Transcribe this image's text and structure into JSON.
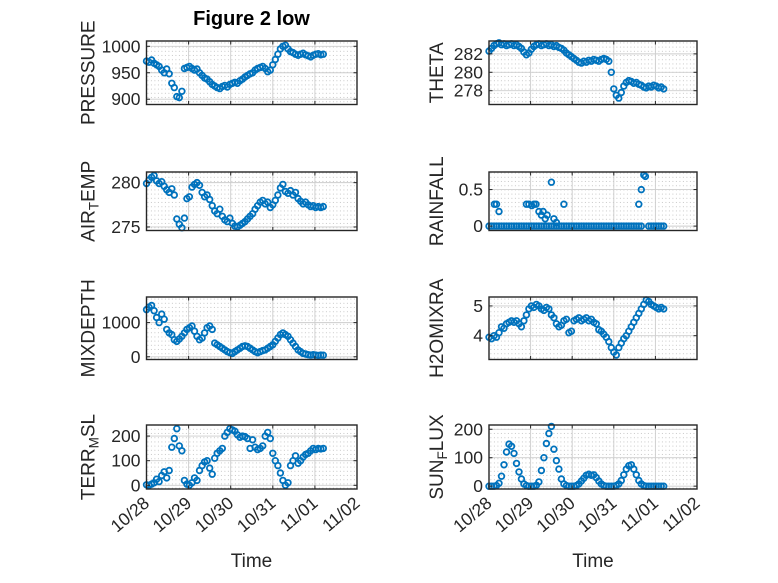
{
  "figure": {
    "title": "Figure 2 low",
    "xlabel": "Time",
    "background": "#ffffff",
    "marker_color": "#0072BD",
    "axis_color": "#262626",
    "grid_color": "#cdcdcd",
    "minor_dot_color": "#c6c6c6",
    "x_tick_labels": [
      "10/28",
      "10/29",
      "10/30",
      "10/31",
      "11/01",
      "11/02"
    ]
  },
  "chart_data": {
    "type": "scatter",
    "marker": "open-circle",
    "x_unit": "days since 10/28 00:00",
    "xlim_days": [
      0,
      5
    ],
    "x_tick_days": [
      0,
      1,
      2,
      3,
      4,
      5
    ],
    "x_tick_labels": [
      "10/28",
      "10/29",
      "10/30",
      "10/31",
      "11/01",
      "11/02"
    ],
    "xlabel": "Time",
    "grid": "major solid + dotted minor",
    "x_days": [
      0,
      0.06,
      0.12,
      0.18,
      0.24,
      0.3,
      0.36,
      0.42,
      0.48,
      0.54,
      0.6,
      0.66,
      0.72,
      0.78,
      0.84,
      0.9,
      0.96,
      1.02,
      1.08,
      1.14,
      1.2,
      1.26,
      1.32,
      1.38,
      1.44,
      1.5,
      1.56,
      1.62,
      1.68,
      1.74,
      1.8,
      1.86,
      1.92,
      1.98,
      2.04,
      2.1,
      2.16,
      2.22,
      2.28,
      2.34,
      2.4,
      2.46,
      2.52,
      2.58,
      2.64,
      2.7,
      2.76,
      2.82,
      2.88,
      2.94,
      3.0,
      3.06,
      3.12,
      3.18,
      3.24,
      3.3,
      3.36,
      3.42,
      3.48,
      3.54,
      3.6,
      3.66,
      3.72,
      3.78,
      3.84,
      3.9,
      3.96,
      4.02,
      4.08,
      4.14,
      4.2
    ],
    "subplots": [
      {
        "id": "pressure",
        "name": "PRESSURE",
        "grid": [
          0,
          0
        ],
        "ylabel_parts": [
          {
            "text": "PRESSURE",
            "sub": false
          }
        ],
        "yticks": [
          900,
          950,
          1000
        ],
        "ylim": [
          890,
          1010
        ],
        "values": [
          972,
          970,
          974,
          968,
          965,
          962,
          955,
          950,
          957,
          948,
          930,
          922,
          905,
          903,
          915,
          958,
          960,
          962,
          958,
          955,
          957,
          950,
          945,
          940,
          938,
          933,
          928,
          925,
          922,
          920,
          924,
          926,
          923,
          928,
          930,
          932,
          930,
          935,
          938,
          942,
          945,
          948,
          950,
          955,
          958,
          960,
          962,
          958,
          952,
          955,
          965,
          975,
          985,
          995,
          1000,
          1002,
          995,
          990,
          988,
          985,
          983,
          985,
          987,
          984,
          982,
          980,
          983,
          985,
          986,
          984,
          985
        ]
      },
      {
        "id": "theta",
        "name": "THETA",
        "grid": [
          0,
          1
        ],
        "ylabel_parts": [
          {
            "text": "THETA",
            "sub": false
          }
        ],
        "yticks": [
          278,
          280,
          282
        ],
        "ylim": [
          276.5,
          283.4
        ],
        "values": [
          282.3,
          282.6,
          282.9,
          283.1,
          283.2,
          283.0,
          283.1,
          282.9,
          283.0,
          283.1,
          282.9,
          283.0,
          282.8,
          282.6,
          282.2,
          281.9,
          282.1,
          282.5,
          282.8,
          283.0,
          283.1,
          282.9,
          283.0,
          283.1,
          282.9,
          283.0,
          282.8,
          282.9,
          282.7,
          282.6,
          282.4,
          282.1,
          281.9,
          281.7,
          281.5,
          281.3,
          281.1,
          281.0,
          281.2,
          281.1,
          281.3,
          281.2,
          281.4,
          281.3,
          281.2,
          281.4,
          281.5,
          281.4,
          281.2,
          280.0,
          278.2,
          277.5,
          277.2,
          277.8,
          278.5,
          278.9,
          279.1,
          279.0,
          278.8,
          278.9,
          278.7,
          278.6,
          278.4,
          278.3,
          278.5,
          278.4,
          278.6,
          278.5,
          278.3,
          278.4,
          278.2
        ]
      },
      {
        "id": "air-temp",
        "name": "AIR_TEMP",
        "grid": [
          1,
          0
        ],
        "ylabel_parts": [
          {
            "text": "AIR",
            "sub": false
          },
          {
            "text": "T",
            "sub": true
          },
          {
            "text": "EMP",
            "sub": false
          }
        ],
        "yticks": [
          275,
          280
        ],
        "ylim": [
          274.6,
          281.2
        ],
        "values": [
          279.9,
          280.3,
          280.6,
          280.8,
          280.2,
          279.9,
          280.1,
          279.6,
          279.2,
          278.9,
          279.3,
          278.6,
          275.9,
          275.3,
          274.9,
          276.0,
          278.2,
          278.4,
          279.5,
          279.8,
          280.0,
          279.7,
          278.9,
          278.4,
          278.6,
          278.1,
          277.4,
          276.8,
          276.5,
          277.0,
          276.2,
          275.8,
          275.6,
          276.0,
          275.4,
          275.1,
          275.0,
          275.2,
          275.4,
          275.6,
          275.9,
          276.2,
          276.5,
          277.0,
          277.4,
          277.8,
          278.0,
          277.6,
          277.8,
          277.2,
          277.5,
          278.0,
          278.6,
          279.4,
          279.8,
          279.0,
          278.8,
          279.1,
          278.6,
          278.9,
          278.2,
          277.9,
          277.6,
          277.8,
          277.5,
          277.3,
          277.4,
          277.2,
          277.3,
          277.2,
          277.3
        ]
      },
      {
        "id": "rainfall",
        "name": "RAINFALL",
        "grid": [
          1,
          1
        ],
        "ylabel_parts": [
          {
            "text": "RAINFALL",
            "sub": false
          }
        ],
        "yticks": [
          0,
          0.5
        ],
        "ylim": [
          -0.06,
          0.74
        ],
        "values": [
          0,
          0,
          0,
          0,
          0,
          0,
          0,
          0,
          0,
          0,
          0,
          0,
          0,
          0,
          0,
          0,
          0,
          0,
          0,
          0,
          0,
          0,
          0,
          0,
          0,
          0,
          0,
          0,
          0,
          0,
          0,
          0,
          0,
          0,
          0,
          0,
          0,
          0,
          0,
          0,
          0,
          0,
          0,
          0,
          0,
          0,
          0,
          0,
          0,
          0,
          0,
          0,
          0,
          0,
          0,
          0,
          0,
          0,
          0,
          0,
          0,
          0,
          null,
          null,
          0,
          0,
          0,
          0,
          0,
          0,
          0
        ],
        "extra_points": [
          [
            0.13,
            0.3
          ],
          [
            0.18,
            0.3
          ],
          [
            0.24,
            0.2
          ],
          [
            0.9,
            0.3
          ],
          [
            0.96,
            0.3
          ],
          [
            1.03,
            0.28
          ],
          [
            1.08,
            0.3
          ],
          [
            1.13,
            0.3
          ],
          [
            1.2,
            0.2
          ],
          [
            1.26,
            0.15
          ],
          [
            1.3,
            0.2
          ],
          [
            1.35,
            0.1
          ],
          [
            1.4,
            0.15
          ],
          [
            1.5,
            0.6
          ],
          [
            1.56,
            0.1
          ],
          [
            1.62,
            0.05
          ],
          [
            1.8,
            0.3
          ],
          [
            3.6,
            0.3
          ],
          [
            3.66,
            0.5
          ],
          [
            3.72,
            0.7
          ],
          [
            3.76,
            0.68
          ]
        ]
      },
      {
        "id": "mixdepth",
        "name": "MIXDEPTH",
        "grid": [
          2,
          0
        ],
        "ylabel_parts": [
          {
            "text": "MIXDEPTH",
            "sub": false
          }
        ],
        "yticks": [
          0,
          1000
        ],
        "ylim": [
          -80,
          1750
        ],
        "values": [
          1380,
          1450,
          1500,
          1350,
          1150,
          1000,
          1250,
          1100,
          800,
          700,
          650,
          500,
          450,
          520,
          600,
          700,
          800,
          850,
          900,
          750,
          600,
          500,
          550,
          700,
          850,
          900,
          800,
          400,
          350,
          300,
          250,
          200,
          150,
          120,
          100,
          150,
          200,
          250,
          300,
          320,
          300,
          250,
          200,
          150,
          120,
          150,
          180,
          200,
          250,
          300,
          350,
          450,
          550,
          650,
          700,
          650,
          600,
          500,
          400,
          300,
          200,
          150,
          100,
          80,
          60,
          50,
          60,
          50,
          40,
          50,
          45
        ]
      },
      {
        "id": "h2omixra",
        "name": "H2OMIXRA",
        "grid": [
          2,
          1
        ],
        "ylabel_parts": [
          {
            "text": "H2OMIXRA",
            "sub": false
          }
        ],
        "yticks": [
          4,
          5
        ],
        "ylim": [
          3.2,
          5.3
        ],
        "values": [
          3.95,
          3.9,
          4.0,
          3.95,
          4.1,
          4.3,
          4.25,
          4.4,
          4.45,
          4.5,
          4.45,
          4.5,
          4.4,
          4.3,
          4.5,
          4.7,
          4.9,
          5.0,
          4.95,
          5.05,
          5.0,
          4.9,
          4.85,
          4.95,
          4.9,
          4.7,
          4.6,
          4.4,
          4.3,
          4.35,
          4.5,
          4.55,
          4.1,
          4.15,
          4.5,
          4.55,
          4.6,
          4.5,
          4.55,
          4.6,
          4.5,
          4.55,
          4.45,
          4.4,
          4.2,
          4.15,
          4.05,
          3.95,
          3.8,
          3.6,
          3.45,
          3.35,
          3.6,
          3.75,
          3.9,
          4.0,
          4.15,
          4.3,
          4.45,
          4.6,
          4.75,
          4.9,
          5.05,
          5.2,
          5.15,
          5.05,
          5.0,
          4.95,
          4.9,
          4.95,
          4.9
        ]
      },
      {
        "id": "terr-msl",
        "name": "TERR_MSL",
        "grid": [
          3,
          0
        ],
        "ylabel_parts": [
          {
            "text": "TERR",
            "sub": false
          },
          {
            "text": "M",
            "sub": true
          },
          {
            "text": "SL",
            "sub": false
          }
        ],
        "yticks": [
          0,
          100,
          200
        ],
        "ylim": [
          -15,
          245
        ],
        "values": [
          2,
          0,
          5,
          10,
          25,
          15,
          40,
          55,
          30,
          60,
          155,
          190,
          230,
          160,
          140,
          20,
          5,
          0,
          10,
          30,
          20,
          60,
          80,
          95,
          100,
          70,
          45,
          110,
          130,
          140,
          150,
          200,
          215,
          230,
          225,
          220,
          205,
          195,
          200,
          198,
          190,
          150,
          185,
          155,
          145,
          150,
          160,
          200,
          215,
          190,
          130,
          100,
          80,
          50,
          20,
          0,
          10,
          80,
          100,
          120,
          90,
          100,
          115,
          125,
          130,
          140,
          150,
          145,
          150,
          148,
          150
        ]
      },
      {
        "id": "sun-flux",
        "name": "SUN_FLUX",
        "grid": [
          3,
          1
        ],
        "ylabel_parts": [
          {
            "text": "SUN",
            "sub": false
          },
          {
            "text": "F",
            "sub": true
          },
          {
            "text": "LUX",
            "sub": false
          }
        ],
        "yticks": [
          0,
          100,
          200
        ],
        "ylim": [
          -10,
          215
        ],
        "values": [
          0,
          0,
          0,
          2,
          10,
          35,
          75,
          120,
          148,
          140,
          115,
          80,
          50,
          25,
          8,
          2,
          0,
          0,
          0,
          3,
          15,
          55,
          100,
          150,
          185,
          210,
          130,
          90,
          60,
          25,
          8,
          2,
          0,
          0,
          0,
          2,
          8,
          18,
          28,
          38,
          42,
          38,
          40,
          30,
          18,
          8,
          2,
          0,
          0,
          0,
          0,
          2,
          8,
          20,
          40,
          60,
          72,
          75,
          60,
          40,
          20,
          8,
          2,
          0,
          0,
          0,
          0,
          0,
          0,
          0,
          0
        ]
      }
    ]
  }
}
